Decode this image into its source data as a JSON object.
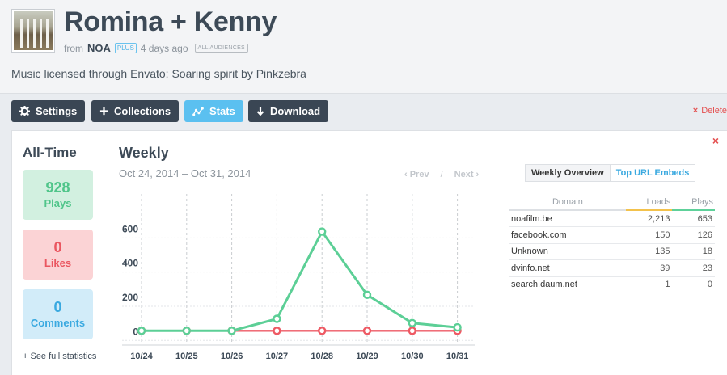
{
  "header": {
    "title": "Romina + Kenny",
    "from_label": "from",
    "owner": "NOA",
    "plus_badge": "PLUS",
    "time_ago": "4 days ago",
    "audience_badge": "ALL AUDIENCES",
    "description": "Music licensed through Envato: Soaring spirit by Pinkzebra"
  },
  "toolbar": {
    "settings_label": "Settings",
    "collections_label": "Collections",
    "stats_label": "Stats",
    "download_label": "Download",
    "delete_label": "Delete",
    "active_color": "#5bc0f0",
    "button_color": "#3a4654",
    "delete_color": "#e44f4f"
  },
  "alltime": {
    "title": "All-Time",
    "plays_value": "928",
    "plays_label": "Plays",
    "likes_value": "0",
    "likes_label": "Likes",
    "comments_value": "0",
    "comments_label": "Comments",
    "full_stats_link": "+ See full statistics"
  },
  "weekly": {
    "title": "Weekly",
    "date_range": "Oct 24, 2014 – Oct 31, 2014",
    "prev_label": "‹ Prev",
    "separator": "/",
    "next_label": "Next ›"
  },
  "chart_data": {
    "type": "line",
    "x": [
      "10/24",
      "10/25",
      "10/26",
      "10/27",
      "10/28",
      "10/29",
      "10/30",
      "10/31"
    ],
    "yticks": [
      0,
      200,
      400,
      600
    ],
    "ylim": [
      -60,
      800
    ],
    "grid": true,
    "series": [
      {
        "color": "#5ccf96",
        "values": [
          0,
          0,
          0,
          70,
          580,
          210,
          45,
          20
        ]
      },
      {
        "color": "#ee5a64",
        "values": [
          0,
          0,
          0,
          0,
          0,
          0,
          0,
          0
        ]
      }
    ]
  },
  "embeds": {
    "tab_overview": "Weekly Overview",
    "tab_top_urls": "Top URL Embeds",
    "columns": [
      "Domain",
      "Loads",
      "Plays"
    ],
    "rows": [
      [
        "noafilm.be",
        "2,213",
        "653"
      ],
      [
        "facebook.com",
        "150",
        "126"
      ],
      [
        "Unknown",
        "135",
        "18"
      ],
      [
        "dvinfo.net",
        "39",
        "23"
      ],
      [
        "search.daum.net",
        "1",
        "0"
      ]
    ]
  }
}
